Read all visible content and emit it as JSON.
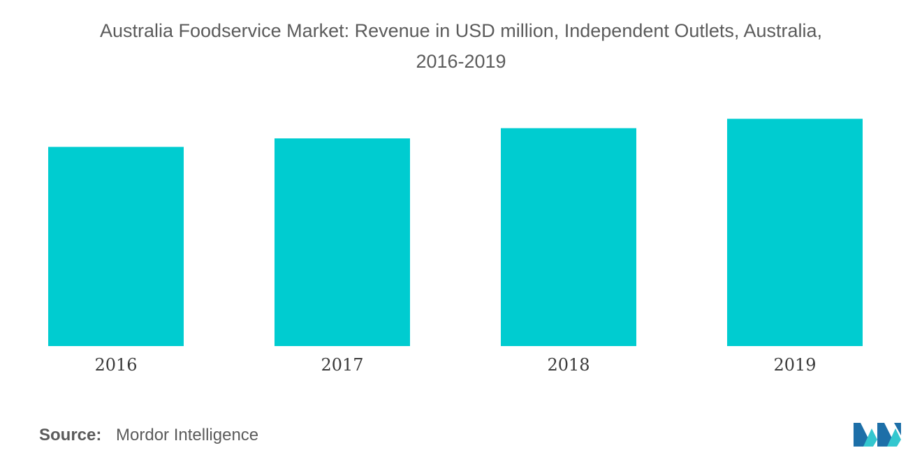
{
  "header": {
    "title_line1": "Australia Foodservice Market: Revenue in USD million, Independent Outlets, Australia,",
    "title_line2": "2016-2019"
  },
  "chart_data": {
    "type": "bar",
    "title": "Australia Foodservice Market: Revenue in USD million, Independent Outlets, Australia, 2016-2019",
    "categories": [
      "2016",
      "2017",
      "2018",
      "2019"
    ],
    "values": [
      234,
      244,
      256,
      267
    ],
    "xlabel": "",
    "ylabel": "",
    "ylim": [
      0,
      300
    ],
    "grid": false,
    "legend": "none",
    "bar_color": "#00ccd0"
  },
  "footer": {
    "source_label": "Source:",
    "source_value": "Mordor Intelligence"
  },
  "colors": {
    "title": "#5b5b5b",
    "bar": "#00ccd0",
    "logo_dark": "#1d6fa8",
    "logo_light": "#33c7cf"
  },
  "logo": {
    "icon": "mordor-intelligence-logo"
  }
}
